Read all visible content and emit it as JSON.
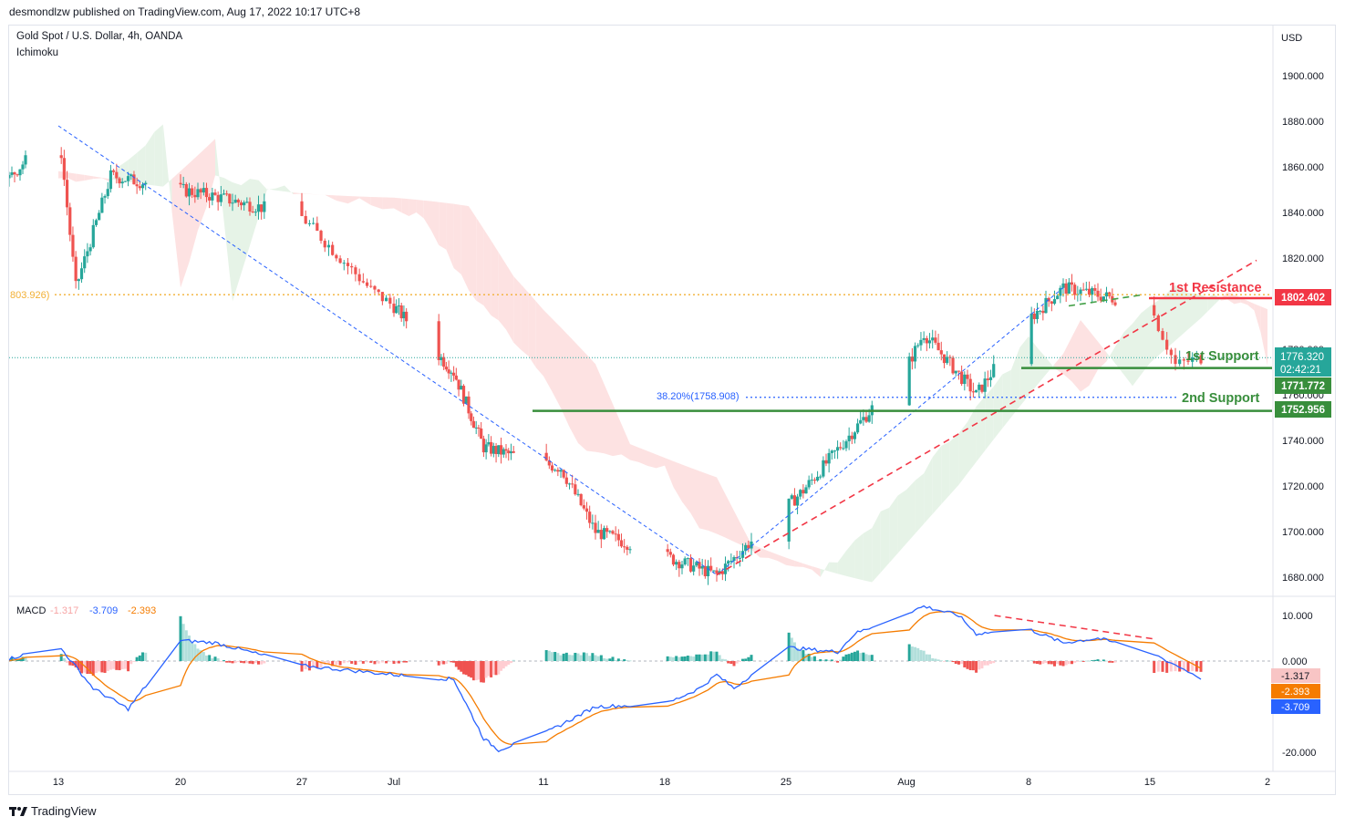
{
  "header": {
    "published": "desmondlzw published on TradingView.com, Aug 17, 2022 10:17 UTC+8"
  },
  "legend": {
    "symbol": "Gold Spot / U.S. Dollar, 4h, OANDA",
    "indicator": "Ichimoku"
  },
  "footer": {
    "brand": "TradingView"
  },
  "colors": {
    "bull": "#26a69a",
    "bear": "#ef5350",
    "resistance": "#f23645",
    "support": "#388e3c",
    "fib": "#2962ff",
    "macd_line": "#2962ff",
    "signal_line": "#f57c00",
    "orange_level": "#f2b035"
  },
  "chart_data": [
    {
      "type": "candlestick",
      "title": "Gold Spot / U.S. Dollar, 4h, OANDA",
      "currency": "USD",
      "ylim": [
        1672,
        1922
      ],
      "y_ticks": [
        {
          "value": 1900,
          "label": "1900.000"
        },
        {
          "value": 1880,
          "label": "1880.000"
        },
        {
          "value": 1860,
          "label": "1860.000"
        },
        {
          "value": 1840,
          "label": "1840.000"
        },
        {
          "value": 1820,
          "label": "1820.000"
        },
        {
          "value": 1780,
          "label": "1780.000"
        },
        {
          "value": 1760,
          "label": "1760.000"
        },
        {
          "value": 1740,
          "label": "1740.000"
        },
        {
          "value": 1720,
          "label": "1720.000"
        },
        {
          "value": 1700,
          "label": "1700.000"
        },
        {
          "value": 1680,
          "label": "1680.000"
        }
      ],
      "x_ticks": [
        "13",
        "20",
        "27",
        "Jul",
        "11",
        "18",
        "25",
        "Aug",
        "8",
        "15",
        "2"
      ],
      "key_points": [
        {
          "date": "Jun 10",
          "price": 1855
        },
        {
          "date": "Jun 13",
          "price": 1878
        },
        {
          "date": "Jun 14",
          "price": 1807
        },
        {
          "date": "Jun 16",
          "price": 1856
        },
        {
          "date": "Jun 22",
          "price": 1847
        },
        {
          "date": "Jun 27",
          "price": 1838
        },
        {
          "date": "Jun 30",
          "price": 1806
        },
        {
          "date": "Jul 5",
          "price": 1770
        },
        {
          "date": "Jul 7",
          "price": 1737
        },
        {
          "date": "Jul 12",
          "price": 1728
        },
        {
          "date": "Jul 14",
          "price": 1700
        },
        {
          "date": "Jul 21",
          "price": 1681
        },
        {
          "date": "Jul 26",
          "price": 1718
        },
        {
          "date": "Aug 1",
          "price": 1772
        },
        {
          "date": "Aug 2",
          "price": 1787
        },
        {
          "date": "Aug 5",
          "price": 1760
        },
        {
          "date": "Aug 8",
          "price": 1793
        },
        {
          "date": "Aug 10",
          "price": 1807
        },
        {
          "date": "Aug 15",
          "price": 1799
        },
        {
          "date": "Aug 16",
          "price": 1773
        },
        {
          "date": "Aug 17",
          "price": 1776.32
        }
      ],
      "levels": [
        {
          "name": "1st Resistance",
          "value": 1802.402,
          "label": "1802.402"
        },
        {
          "name": "1st Support",
          "value": 1771.772,
          "label": "1771.772"
        },
        {
          "name": "2nd Support",
          "value": 1752.956,
          "label": "1752.956"
        }
      ],
      "left_level": {
        "label": "803.926)",
        "value": 1803.926
      },
      "fib": {
        "label": "38.20%(1758.908)",
        "value": 1758.908
      },
      "current": {
        "price": "1776.320",
        "countdown": "02:42:21",
        "value": 1776.32
      }
    },
    {
      "type": "macd",
      "name": "MACD",
      "values": {
        "histogram": "-1.317",
        "macd": "-3.709",
        "signal": "-2.393"
      },
      "ylim": [
        -24,
        14
      ],
      "y_ticks": [
        {
          "value": 10,
          "label": "10.000"
        },
        {
          "value": 0,
          "label": "0.000"
        },
        {
          "value": -10,
          "label": "-10.000"
        },
        {
          "value": -20,
          "label": "-20.000"
        }
      ],
      "markers": [
        {
          "label": "-1.317",
          "value": -1.317
        },
        {
          "label": "-2.393",
          "value": -2.393
        },
        {
          "label": "-3.709",
          "value": -3.709
        }
      ],
      "macd_points": [
        {
          "date": "Jun 10",
          "v": 0.5
        },
        {
          "date": "Jun 13",
          "v": 3.5
        },
        {
          "date": "Jun 15",
          "v": -6
        },
        {
          "date": "Jun 17",
          "v": -10.5
        },
        {
          "date": "Jun 20",
          "v": 4.5
        },
        {
          "date": "Jun 22",
          "v": 4
        },
        {
          "date": "Jun 27",
          "v": -1
        },
        {
          "date": "Jul 1",
          "v": -3
        },
        {
          "date": "Jul 5",
          "v": -4
        },
        {
          "date": "Jul 7",
          "v": -17
        },
        {
          "date": "Jul 8",
          "v": -19.5
        },
        {
          "date": "Jul 11",
          "v": -16
        },
        {
          "date": "Jul 14",
          "v": -10
        },
        {
          "date": "Jul 18",
          "v": -9.5
        },
        {
          "date": "Jul 20",
          "v": -6
        },
        {
          "date": "Jul 21",
          "v": -3
        },
        {
          "date": "Jul 22",
          "v": -6
        },
        {
          "date": "Jul 25",
          "v": 3
        },
        {
          "date": "Jul 28",
          "v": 2
        },
        {
          "date": "Jul 29",
          "v": 6
        },
        {
          "date": "Aug 2",
          "v": 12
        },
        {
          "date": "Aug 4",
          "v": 10
        },
        {
          "date": "Aug 5",
          "v": 6
        },
        {
          "date": "Aug 8",
          "v": 7
        },
        {
          "date": "Aug 10",
          "v": 4
        },
        {
          "date": "Aug 12",
          "v": 5
        },
        {
          "date": "Aug 15",
          "v": 2
        },
        {
          "date": "Aug 17",
          "v": -3.709
        }
      ]
    }
  ]
}
